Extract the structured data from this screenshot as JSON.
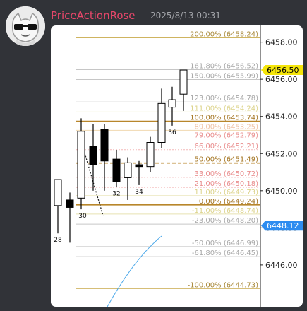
{
  "message": {
    "username": "PriceActionRose",
    "timestamp": "2025/8/13 00:31",
    "avatar_icon": "sunglasses-cat-avatar-icon"
  },
  "chart_data": {
    "type": "candlestick",
    "title": "",
    "xlabel": "",
    "ylabel": "",
    "ylim": [
      6443.75,
      6458.9
    ],
    "y_ticks": [
      6446.0,
      6448.0,
      6450.0,
      6452.0,
      6454.0,
      6456.0,
      6458.0
    ],
    "y_tick_labels": [
      "6446.00",
      "6448.00",
      "6450.00",
      "6452.00",
      "6454.00",
      "6456.00",
      "6458.00"
    ],
    "price_badges": [
      {
        "label": "6456.50",
        "value": 6456.5,
        "color": "#f5e60a",
        "text_color": "#000000"
      },
      {
        "label": "6448.12",
        "value": 6448.12,
        "color": "#2d8cf0",
        "text_color": "#ffffff"
      }
    ],
    "fib_levels": [
      {
        "label": "200.00% (6458.24)",
        "value": 6458.24,
        "color": "#c8a94a",
        "text_color": "#a8893a",
        "style": "solid",
        "weight": "normal"
      },
      {
        "label": "161.80% (6456.52)",
        "value": 6456.52,
        "color": "#c6c6c6",
        "text_color": "#a8a8a8",
        "style": "solid",
        "weight": "normal"
      },
      {
        "label": "150.00% (6455.99)",
        "value": 6455.99,
        "color": "#c6c6c6",
        "text_color": "#a8a8a8",
        "style": "solid",
        "weight": "normal"
      },
      {
        "label": "123.00% (6454.78)",
        "value": 6454.78,
        "color": "#c6c6c6",
        "text_color": "#a8a8a8",
        "style": "solid",
        "weight": "normal"
      },
      {
        "label": "111.00% (6454.24)",
        "value": 6454.24,
        "color": "#e8e2b0",
        "text_color": "#dcd38a",
        "style": "solid",
        "weight": "normal"
      },
      {
        "label": "100.00% (6453.74)",
        "value": 6453.74,
        "color": "#b8862b",
        "text_color": "#a47522",
        "style": "solid",
        "weight": "thick"
      },
      {
        "label": "89.00% (6453.25)",
        "value": 6453.25,
        "color": "#f0d8b0",
        "text_color": "#efc3a6",
        "style": "solid",
        "weight": "normal"
      },
      {
        "label": "79.00% (6452.79)",
        "value": 6452.79,
        "color": "#f4b8b8",
        "text_color": "#e98d8d",
        "style": "dotted",
        "weight": "normal"
      },
      {
        "label": "66.00% (6452.21)",
        "value": 6452.21,
        "color": "#f4b8b8",
        "text_color": "#e98d8d",
        "style": "dotted",
        "weight": "normal"
      },
      {
        "label": "50.00% (6451.49)",
        "value": 6451.49,
        "color": "#b8862b",
        "text_color": "#a47522",
        "style": "dashed",
        "weight": "thick"
      },
      {
        "label": "33.00% (6450.72)",
        "value": 6450.72,
        "color": "#f4b8b8",
        "text_color": "#e98d8d",
        "style": "dotted",
        "weight": "normal"
      },
      {
        "label": "21.00% (6450.18)",
        "value": 6450.18,
        "color": "#f4b8b8",
        "text_color": "#e98d8d",
        "style": "dotted",
        "weight": "normal"
      },
      {
        "label": "11.00% (6449.73)",
        "value": 6449.73,
        "color": "#e8e2b0",
        "text_color": "#dcd38a",
        "style": "solid",
        "weight": "normal"
      },
      {
        "label": "0.00% (6449.24)",
        "value": 6449.24,
        "color": "#b8862b",
        "text_color": "#a47522",
        "style": "solid",
        "weight": "thick"
      },
      {
        "label": "-11.00% (6448.74)",
        "value": 6448.74,
        "color": "#e8e2b0",
        "text_color": "#dcd38a",
        "style": "solid",
        "weight": "normal"
      },
      {
        "label": "-23.00% (6448.20)",
        "value": 6448.2,
        "color": "#c6c6c6",
        "text_color": "#a8a8a8",
        "style": "solid",
        "weight": "normal"
      },
      {
        "label": "-50.00% (6446.99)",
        "value": 6446.99,
        "color": "#c6c6c6",
        "text_color": "#a8a8a8",
        "style": "solid",
        "weight": "normal"
      },
      {
        "label": "-61.80% (6446.45)",
        "value": 6446.45,
        "color": "#c6c6c6",
        "text_color": "#a8a8a8",
        "style": "solid",
        "weight": "normal"
      },
      {
        "label": "-100.00% (6444.73)",
        "value": 6444.73,
        "color": "#c8a94a",
        "text_color": "#a8893a",
        "style": "solid",
        "weight": "normal"
      }
    ],
    "candles": [
      {
        "open": 6449.2,
        "high": 6450.6,
        "low": 6447.7,
        "close": 6450.6,
        "label": "28"
      },
      {
        "open": 6449.5,
        "high": 6449.9,
        "low": 6447.2,
        "close": 6449.1,
        "label": ""
      },
      {
        "open": 6449.6,
        "high": 6453.9,
        "low": 6449.0,
        "close": 6453.2,
        "label": "30"
      },
      {
        "open": 6452.4,
        "high": 6453.6,
        "low": 6450.0,
        "close": 6451.4,
        "label": ""
      },
      {
        "open": 6453.3,
        "high": 6453.6,
        "low": 6450.0,
        "close": 6451.6,
        "label": ""
      },
      {
        "open": 6451.7,
        "high": 6452.2,
        "low": 6450.2,
        "close": 6450.5,
        "label": "32"
      },
      {
        "open": 6450.7,
        "high": 6451.8,
        "low": 6449.5,
        "close": 6451.5,
        "label": ""
      },
      {
        "open": 6451.4,
        "high": 6451.6,
        "low": 6450.3,
        "close": 6451.3,
        "label": "34"
      },
      {
        "open": 6451.3,
        "high": 6452.9,
        "low": 6451.0,
        "close": 6452.6,
        "label": ""
      },
      {
        "open": 6452.6,
        "high": 6455.5,
        "low": 6452.3,
        "close": 6454.7,
        "label": ""
      },
      {
        "open": 6454.5,
        "high": 6455.6,
        "low": 6453.5,
        "close": 6454.9,
        "label": "36"
      },
      {
        "open": 6455.2,
        "high": 6456.5,
        "low": 6454.3,
        "close": 6456.5,
        "label": ""
      }
    ],
    "markup_colors": {
      "rising_line": "#4aa8ea",
      "dotted_trend": "#222222"
    }
  }
}
